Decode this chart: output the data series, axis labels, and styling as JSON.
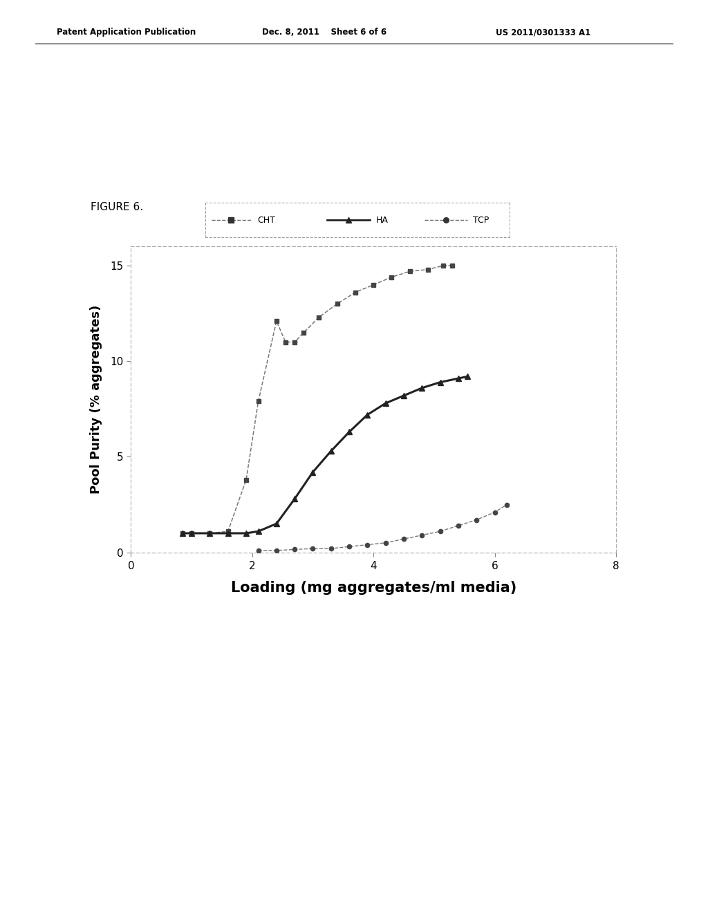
{
  "title": "FIGURE 6.",
  "xlabel": "Loading (mg aggregates/ml media)",
  "ylabel": "Pool Purity (% aggregates)",
  "xlim": [
    0,
    8
  ],
  "ylim": [
    0,
    16
  ],
  "xticks": [
    0,
    2,
    4,
    6,
    8
  ],
  "yticks": [
    0,
    5,
    10,
    15
  ],
  "CHT_x": [
    0.85,
    1.0,
    1.3,
    1.6,
    1.9,
    2.1,
    2.4,
    2.55,
    2.7,
    2.85,
    3.1,
    3.4,
    3.7,
    4.0,
    4.3,
    4.6,
    4.9,
    5.15,
    5.3
  ],
  "CHT_y": [
    1.0,
    1.0,
    1.0,
    1.1,
    3.8,
    7.9,
    12.1,
    11.0,
    11.0,
    11.5,
    12.3,
    13.0,
    13.6,
    14.0,
    14.4,
    14.7,
    14.8,
    15.0,
    15.0
  ],
  "HA_x": [
    0.85,
    1.0,
    1.3,
    1.6,
    1.9,
    2.1,
    2.4,
    2.7,
    3.0,
    3.3,
    3.6,
    3.9,
    4.2,
    4.5,
    4.8,
    5.1,
    5.4,
    5.55
  ],
  "HA_y": [
    1.0,
    1.0,
    1.0,
    1.0,
    1.0,
    1.1,
    1.5,
    2.8,
    4.2,
    5.3,
    6.3,
    7.2,
    7.8,
    8.2,
    8.6,
    8.9,
    9.1,
    9.2
  ],
  "TCP_x": [
    2.1,
    2.4,
    2.7,
    3.0,
    3.3,
    3.6,
    3.9,
    4.2,
    4.5,
    4.8,
    5.1,
    5.4,
    5.7,
    6.0,
    6.2
  ],
  "TCP_y": [
    0.1,
    0.1,
    0.15,
    0.2,
    0.2,
    0.3,
    0.4,
    0.5,
    0.7,
    0.9,
    1.1,
    1.4,
    1.7,
    2.1,
    2.5
  ],
  "CHT_color": "#555555",
  "HA_color": "#222222",
  "TCP_color": "#555555",
  "background_color": "#ffffff",
  "header_left": "Patent Application Publication",
  "header_center": "Dec. 8, 2011    Sheet 6 of 6",
  "header_right": "US 2011/0301333 A1",
  "figure_label": "FIGURE 6.",
  "legend_labels": [
    "CHT",
    "HA",
    "TCP"
  ]
}
